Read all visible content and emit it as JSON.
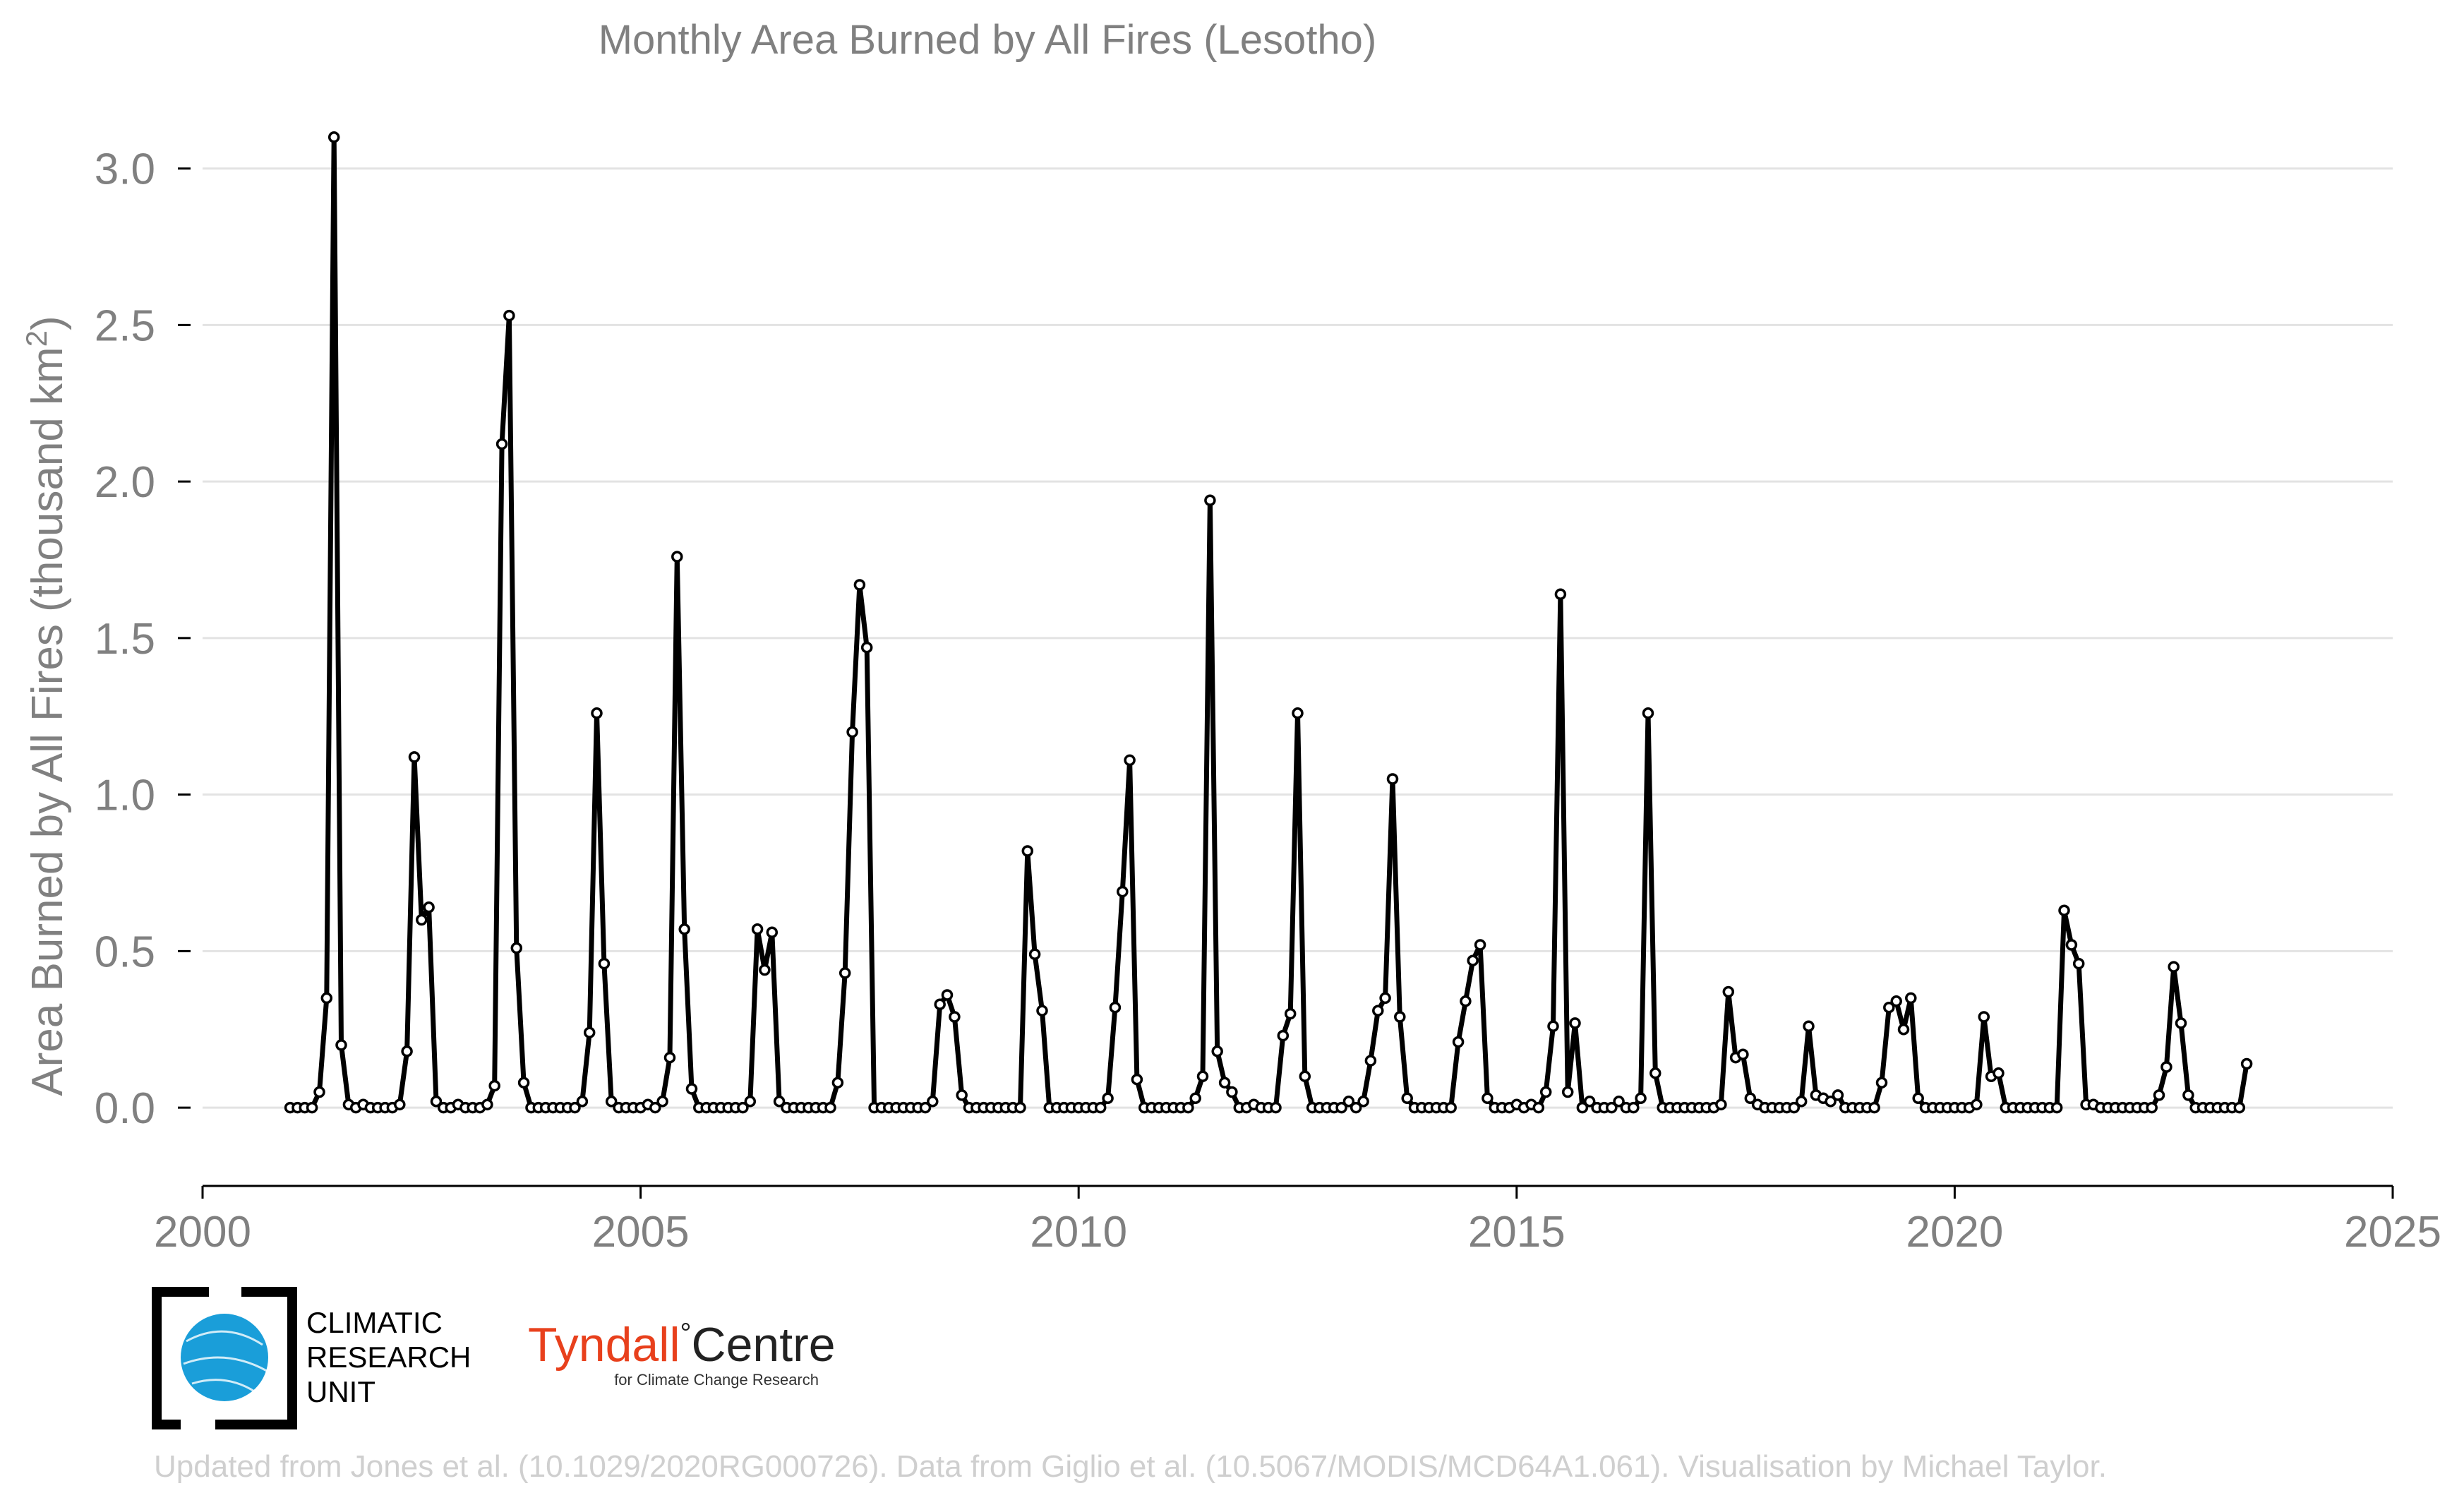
{
  "chart_data": {
    "type": "line",
    "title": "Monthly Area Burned by All Fires (Lesotho)",
    "ylabel_prefix": "Area Burned by All Fires (thousand km",
    "ylabel_sup": "2",
    "ylabel_suffix": ")",
    "xlabel": "",
    "x_ticks": [
      "2000",
      "2005",
      "2010",
      "2015",
      "2020",
      "2025"
    ],
    "y_ticks": [
      "0.0",
      "0.5",
      "1.0",
      "1.5",
      "2.0",
      "2.5",
      "3.0"
    ],
    "xlim": [
      2000,
      2025
    ],
    "ylim": [
      -0.25,
      3.2
    ],
    "grid": true,
    "legend": "none",
    "series": [
      {
        "start": "2001-01",
        "frequency": "monthly",
        "values": [
          0.0,
          0.0,
          0.0,
          0.0,
          0.05,
          0.35,
          3.1,
          0.2,
          0.01,
          0.0,
          0.01,
          0.0,
          0.0,
          0.0,
          0.0,
          0.01,
          0.18,
          1.12,
          0.6,
          0.64,
          0.02,
          0.0,
          0.0,
          0.01,
          0.0,
          0.0,
          0.0,
          0.01,
          0.07,
          2.12,
          2.53,
          0.51,
          0.08,
          0.0,
          0.0,
          0.0,
          0.0,
          0.0,
          0.0,
          0.0,
          0.02,
          0.24,
          1.26,
          0.46,
          0.02,
          0.0,
          0.0,
          0.0,
          0.0,
          0.01,
          0.0,
          0.02,
          0.16,
          1.76,
          0.57,
          0.06,
          0.0,
          0.0,
          0.0,
          0.0,
          0.0,
          0.0,
          0.0,
          0.02,
          0.57,
          0.44,
          0.56,
          0.02,
          0.0,
          0.0,
          0.0,
          0.0,
          0.0,
          0.0,
          0.0,
          0.08,
          0.43,
          1.2,
          1.67,
          1.47,
          0.0,
          0.0,
          0.0,
          0.0,
          0.0,
          0.0,
          0.0,
          0.0,
          0.02,
          0.33,
          0.36,
          0.29,
          0.04,
          0.0,
          0.0,
          0.0,
          0.0,
          0.0,
          0.0,
          0.0,
          0.0,
          0.82,
          0.49,
          0.31,
          0.0,
          0.0,
          0.0,
          0.0,
          0.0,
          0.0,
          0.0,
          0.0,
          0.03,
          0.32,
          0.69,
          1.11,
          0.09,
          0.0,
          0.0,
          0.0,
          0.0,
          0.0,
          0.0,
          0.0,
          0.03,
          0.1,
          1.94,
          0.18,
          0.08,
          0.05,
          0.0,
          0.0,
          0.01,
          0.0,
          0.0,
          0.0,
          0.23,
          0.3,
          1.26,
          0.1,
          0.0,
          0.0,
          0.0,
          0.0,
          0.0,
          0.02,
          0.0,
          0.02,
          0.15,
          0.31,
          0.35,
          1.05,
          0.29,
          0.03,
          0.0,
          0.0,
          0.0,
          0.0,
          0.0,
          0.0,
          0.21,
          0.34,
          0.47,
          0.52,
          0.03,
          0.0,
          0.0,
          0.0,
          0.01,
          0.0,
          0.01,
          0.0,
          0.05,
          0.26,
          1.64,
          0.05,
          0.27,
          0.0,
          0.02,
          0.0,
          0.0,
          0.0,
          0.02,
          0.0,
          0.0,
          0.03,
          1.26,
          0.11,
          0.0,
          0.0,
          0.0,
          0.0,
          0.0,
          0.0,
          0.0,
          0.0,
          0.01,
          0.37,
          0.16,
          0.17,
          0.03,
          0.01,
          0.0,
          0.0,
          0.0,
          0.0,
          0.0,
          0.02,
          0.26,
          0.04,
          0.03,
          0.02,
          0.04,
          0.0,
          0.0,
          0.0,
          0.0,
          0.0,
          0.08,
          0.32,
          0.34,
          0.25,
          0.35,
          0.03,
          0.0,
          0.0,
          0.0,
          0.0,
          0.0,
          0.0,
          0.0,
          0.01,
          0.29,
          0.1,
          0.11,
          0.0,
          0.0,
          0.0,
          0.0,
          0.0,
          0.0,
          0.0,
          0.0,
          0.63,
          0.52,
          0.46,
          0.01,
          0.01,
          0.0,
          0.0,
          0.0,
          0.0,
          0.0,
          0.0,
          0.0,
          0.0,
          0.04,
          0.13,
          0.45,
          0.27,
          0.04,
          0.0,
          0.0,
          0.0,
          0.0,
          0.0,
          0.0,
          0.0,
          0.14
        ]
      }
    ]
  },
  "logos": {
    "cru_lines": [
      "CLIMATIC",
      "RESEARCH",
      "UNIT"
    ],
    "tyndall_name_a": "Tyndall",
    "tyndall_degree": "°",
    "tyndall_name_b": "Centre",
    "tyndall_sub": "for Climate Change Research"
  },
  "footer": "Updated from Jones et al. (10.1029/2020RG000726). Data from Giglio et al. (10.5067/MODIS/MCD64A1.061). Visualisation by Michael Taylor.",
  "colors": {
    "line": "#000000",
    "marker_fill": "#ffffff",
    "grid": "#e3e3e3",
    "text": "#808080",
    "cru_blue": "#1a9ed9",
    "tyndall_red": "#e8401c"
  }
}
